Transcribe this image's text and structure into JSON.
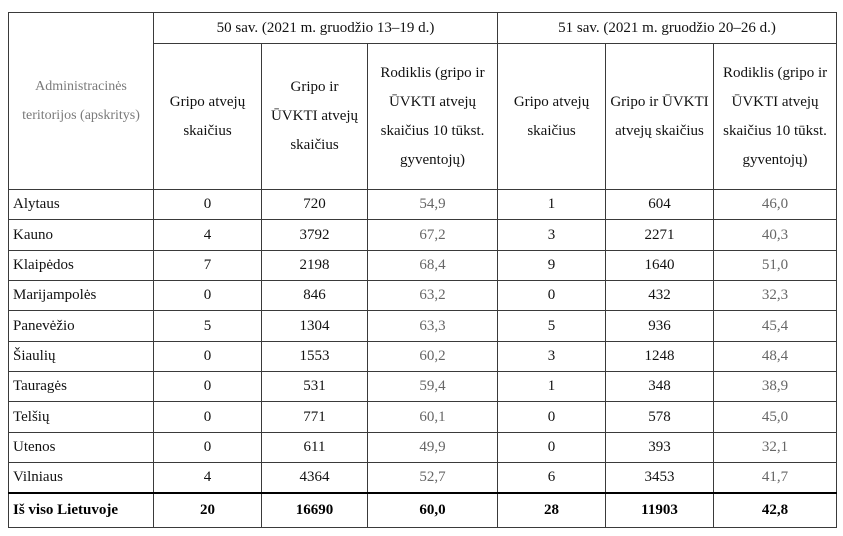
{
  "table": {
    "admin_header": "Administracinės teritorijos (apskritys)",
    "week50_header": "50 sav. (2021 m. gruodžio 13–19 d.)",
    "week51_header": "51 sav. (2021 m. gruodžio 20–26 d.)",
    "col_flu_cases": "Gripo atvejų skaičius",
    "col_flu_ari_cases": "Gripo ir ŪVKTI atvejų skaičius",
    "col_rate": "Rodiklis (gripo ir ŪVKTI atvejų skaičius 10 tūkst. gyventojų)",
    "rows": [
      {
        "name": "Alytaus",
        "w50": [
          "0",
          "720",
          "54,9"
        ],
        "w51": [
          "1",
          "604",
          "46,0"
        ]
      },
      {
        "name": "Kauno",
        "w50": [
          "4",
          "3792",
          "67,2"
        ],
        "w51": [
          "3",
          "2271",
          "40,3"
        ]
      },
      {
        "name": "Klaipėdos",
        "w50": [
          "7",
          "2198",
          "68,4"
        ],
        "w51": [
          "9",
          "1640",
          "51,0"
        ]
      },
      {
        "name": "Marijampolės",
        "w50": [
          "0",
          "846",
          "63,2"
        ],
        "w51": [
          "0",
          "432",
          "32,3"
        ]
      },
      {
        "name": "Panevėžio",
        "w50": [
          "5",
          "1304",
          "63,3"
        ],
        "w51": [
          "5",
          "936",
          "45,4"
        ]
      },
      {
        "name": "Šiaulių",
        "w50": [
          "0",
          "1553",
          "60,2"
        ],
        "w51": [
          "3",
          "1248",
          "48,4"
        ]
      },
      {
        "name": "Tauragės",
        "w50": [
          "0",
          "531",
          "59,4"
        ],
        "w51": [
          "1",
          "348",
          "38,9"
        ]
      },
      {
        "name": "Telšių",
        "w50": [
          "0",
          "771",
          "60,1"
        ],
        "w51": [
          "0",
          "578",
          "45,0"
        ]
      },
      {
        "name": "Utenos",
        "w50": [
          "0",
          "611",
          "49,9"
        ],
        "w51": [
          "0",
          "393",
          "32,1"
        ]
      },
      {
        "name": "Vilniaus",
        "w50": [
          "4",
          "4364",
          "52,7"
        ],
        "w51": [
          "6",
          "3453",
          "41,7"
        ]
      }
    ],
    "total": {
      "name": "Iš viso Lietuvoje",
      "w50": [
        "20",
        "16690",
        "60,0"
      ],
      "w51": [
        "28",
        "11903",
        "42,8"
      ]
    }
  }
}
